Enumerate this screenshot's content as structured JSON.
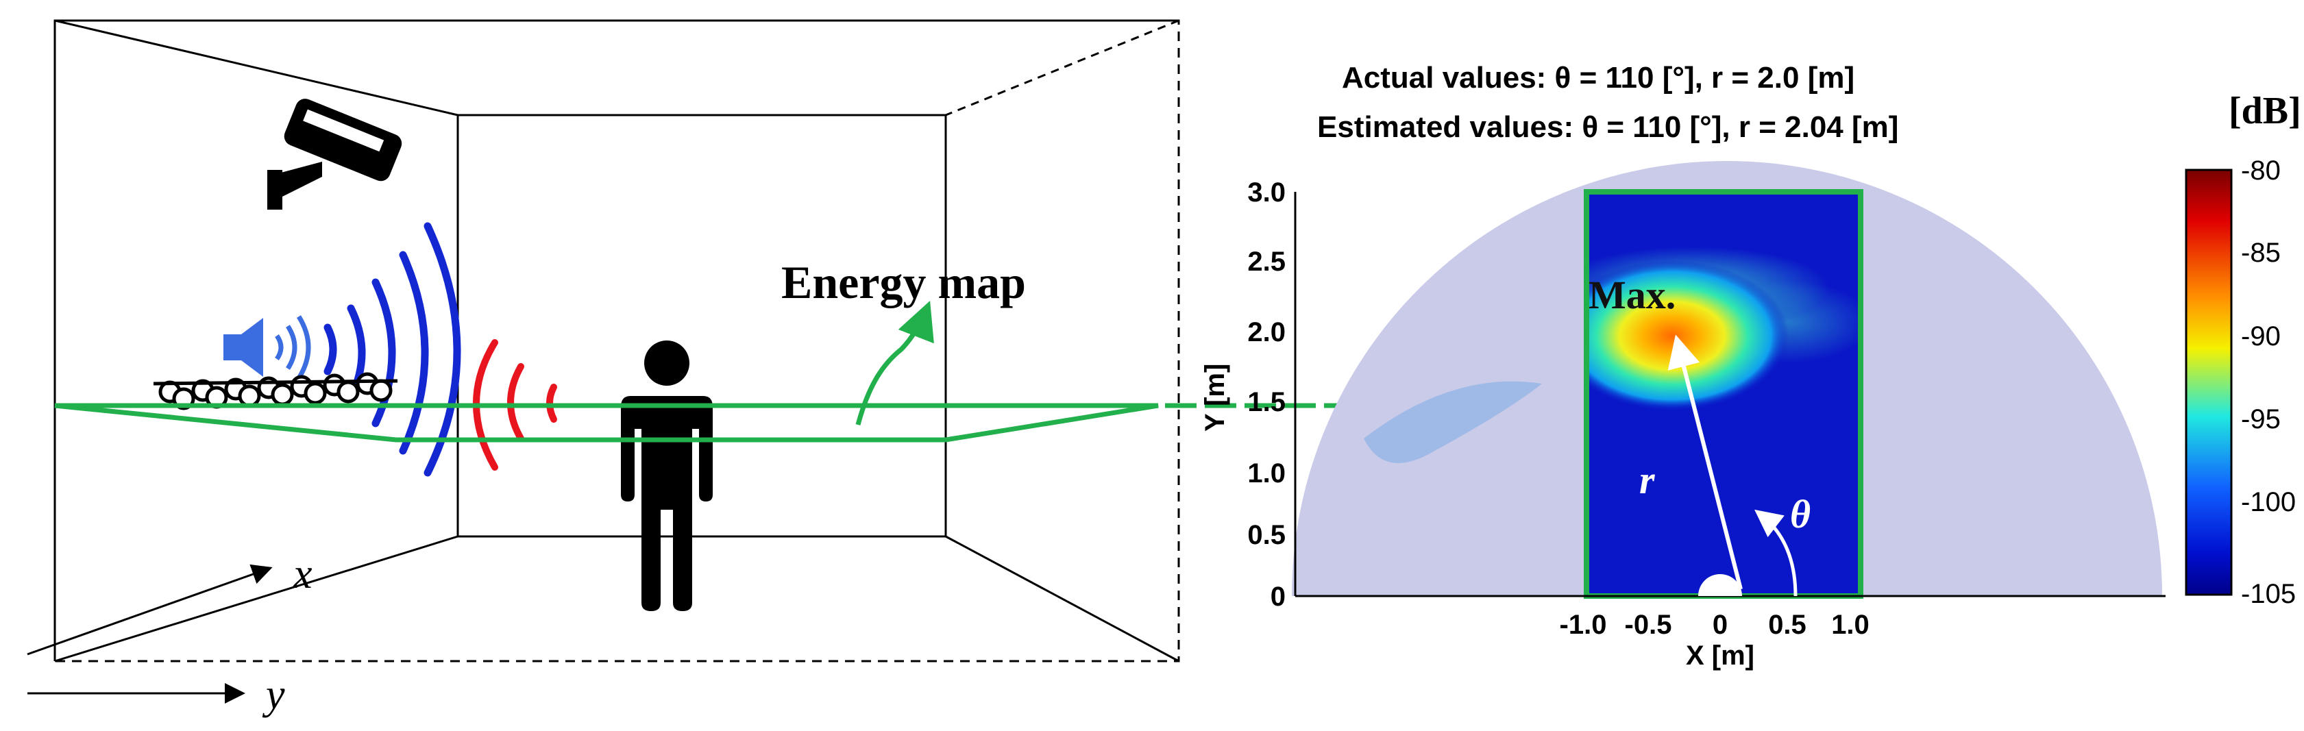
{
  "room": {
    "axis_x_label": "x",
    "axis_y_label": "y",
    "energy_map_label": "Energy map",
    "icons": [
      "camera-icon",
      "speaker-icon",
      "microphone-array-icon",
      "person-icon"
    ]
  },
  "plot": {
    "title_line1": "Actual values: θ = 110 [°], r = 2.0 [m]",
    "title_line2": "Estimated values: θ = 110 [°], r = 2.04 [m]",
    "max_label": "Max.",
    "r_label": "r",
    "theta_label": "θ",
    "xlabel": "X [m]",
    "ylabel": "Y [m]",
    "x_ticks": [
      "-1.0",
      "-0.5",
      "0",
      "0.5",
      "1.0"
    ],
    "y_ticks": [
      "0",
      "0.5",
      "1.0",
      "1.5",
      "2.0",
      "2.5",
      "3.0"
    ],
    "colorbar_unit": "[dB]",
    "colorbar_ticks": [
      "-80",
      "-85",
      "-90",
      "-95",
      "-100",
      "-105"
    ],
    "colors": {
      "highlight": "#22b04c",
      "semicircle": "#c9cbe9",
      "field": "#0a17c8",
      "wave_blue": "#1428d2",
      "wave_red": "#e8141e"
    }
  }
}
